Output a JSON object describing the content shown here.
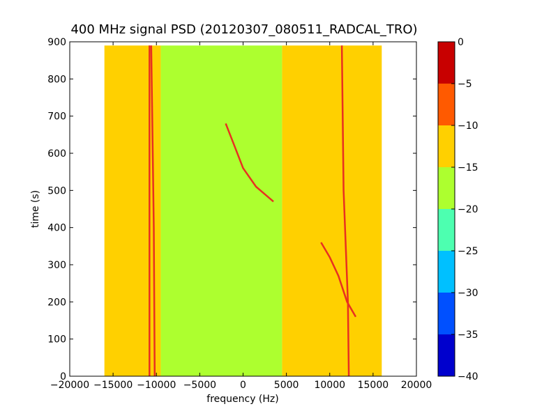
{
  "chart_data": {
    "type": "heatmap",
    "title": "400 MHz signal PSD (20120307_080511_RADCAL_TRO)",
    "xlabel": "frequency (Hz)",
    "ylabel": "time (s)",
    "xlim": [
      -20000,
      20000
    ],
    "ylim": [
      0,
      900
    ],
    "x_ticks": [
      -20000,
      -15000,
      -10000,
      -5000,
      0,
      5000,
      10000,
      15000,
      20000
    ],
    "x_tick_labels": [
      "−20000",
      "−15000",
      "−10000",
      "−5000",
      "0",
      "5000",
      "10000",
      "15000",
      "20000"
    ],
    "y_ticks": [
      0,
      100,
      200,
      300,
      400,
      500,
      600,
      700,
      800,
      900
    ],
    "y_tick_labels": [
      "0",
      "100",
      "200",
      "300",
      "400",
      "500",
      "600",
      "700",
      "800",
      "900"
    ],
    "data_extent": {
      "x": [
        -16000,
        16000
      ],
      "y": [
        0,
        890
      ]
    },
    "background_level": [
      {
        "x_range": [
          -16000,
          -9500
        ],
        "level_range": [
          -15,
          -10
        ]
      },
      {
        "x_range": [
          -9500,
          4500
        ],
        "level_range": [
          -20,
          -15
        ]
      },
      {
        "x_range": [
          4500,
          16000
        ],
        "level_range": [
          -15,
          -10
        ]
      }
    ],
    "lines": [
      {
        "level_range": [
          -5,
          0
        ],
        "points": [
          [
            -10800,
            0
          ],
          [
            -10800,
            890
          ]
        ]
      },
      {
        "level_range": [
          -5,
          0
        ],
        "points": [
          [
            -10200,
            0
          ],
          [
            -10300,
            400
          ],
          [
            -10600,
            890
          ]
        ]
      },
      {
        "level_range": [
          -5,
          0
        ],
        "points": [
          [
            12200,
            0
          ],
          [
            12100,
            200
          ],
          [
            11600,
            500
          ],
          [
            11400,
            890
          ]
        ]
      },
      {
        "level_range": [
          -5,
          0
        ],
        "points": [
          [
            -2000,
            680
          ],
          [
            -1000,
            620
          ],
          [
            0,
            560
          ],
          [
            1500,
            510
          ],
          [
            3500,
            470
          ]
        ]
      },
      {
        "level_range": [
          -5,
          0
        ],
        "points": [
          [
            9000,
            360
          ],
          [
            10000,
            320
          ],
          [
            11000,
            270
          ],
          [
            12000,
            200
          ],
          [
            13000,
            160
          ]
        ]
      }
    ],
    "colorbar": {
      "levels": [
        -40,
        -35,
        -30,
        -25,
        -20,
        -15,
        -10,
        -5,
        0
      ],
      "tick_labels": [
        "−40",
        "−35",
        "−30",
        "−25",
        "−20",
        "−15",
        "−10",
        "−5",
        "0"
      ],
      "colors": [
        "#0000cd",
        "#0050ff",
        "#00c0ff",
        "#4dffb0",
        "#adff2f",
        "#ffd000",
        "#ff5a00",
        "#c80000"
      ]
    }
  }
}
